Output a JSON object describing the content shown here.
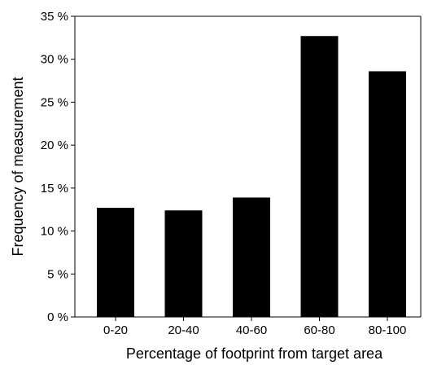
{
  "chart_data": {
    "type": "bar",
    "title": "",
    "xlabel": "Percentage of footprint from target area",
    "ylabel": "Frequency of measurement",
    "categories": [
      "0-20",
      "20-40",
      "40-60",
      "60-80",
      "80-100"
    ],
    "values": [
      12.7,
      12.4,
      13.9,
      32.7,
      28.6
    ],
    "ylim": [
      0,
      35
    ],
    "yticks": [
      0,
      5,
      10,
      15,
      20,
      25,
      30,
      35
    ],
    "ytick_labels": [
      "0 %",
      "5 %",
      "10 %",
      "15 %",
      "20 %",
      "25 %",
      "30 %",
      "35 %"
    ],
    "grid": false,
    "legend": "none",
    "bar_color": "#000000"
  }
}
